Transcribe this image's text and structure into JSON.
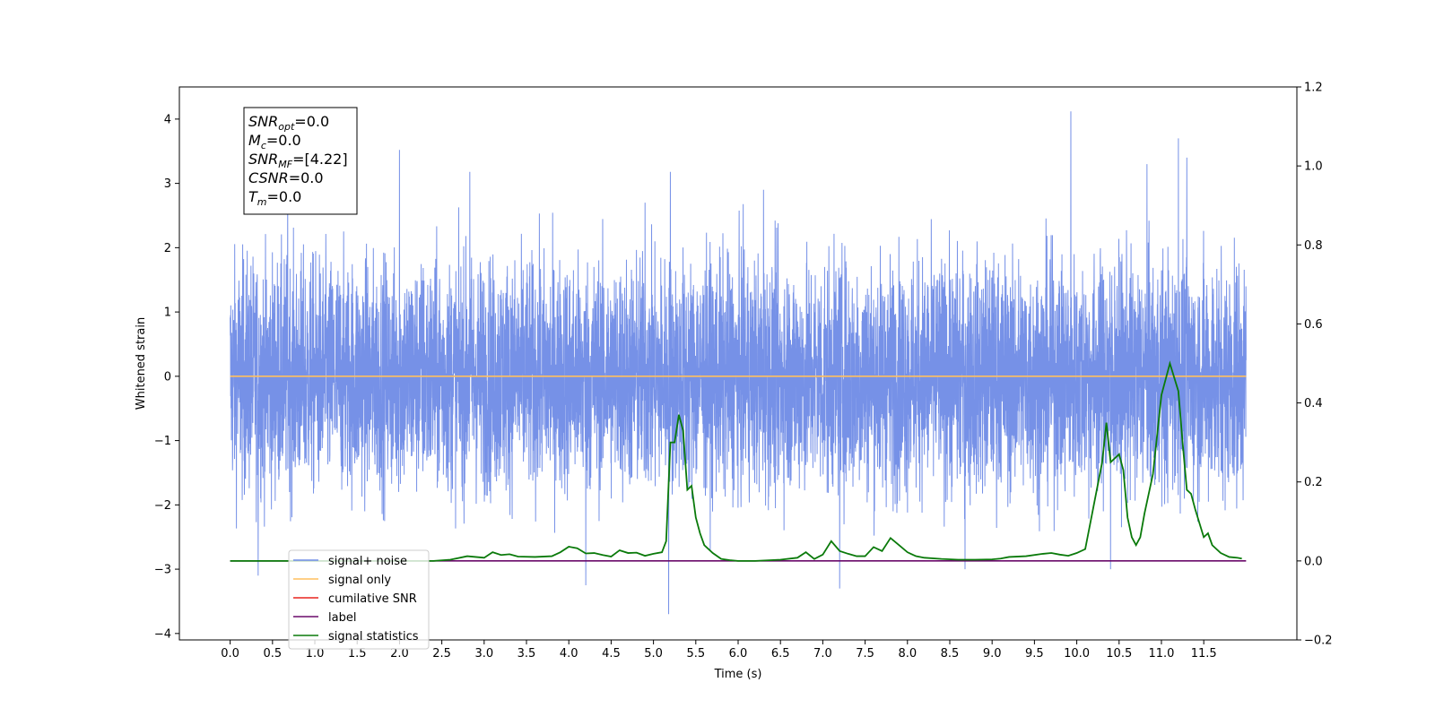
{
  "chart_data": {
    "type": "line",
    "xlabel": "Time (s)",
    "ylabel": "Whitened strain",
    "xlim": [
      -0.6,
      12.6
    ],
    "ylim_left": [
      -4.1,
      4.5
    ],
    "ylim_right": [
      -0.2,
      1.2
    ],
    "x_ticks": [
      0.0,
      0.5,
      1.0,
      1.5,
      2.0,
      2.5,
      3.0,
      3.5,
      4.0,
      4.5,
      5.0,
      5.5,
      6.0,
      6.5,
      7.0,
      7.5,
      8.0,
      8.5,
      9.0,
      9.5,
      10.0,
      10.5,
      11.0,
      11.5
    ],
    "x_tick_labels": [
      "0.0",
      "0.5",
      "1.0",
      "1.5",
      "2.0",
      "2.5",
      "3.0",
      "3.5",
      "4.0",
      "4.5",
      "5.0",
      "5.5",
      "6.0",
      "6.5",
      "7.0",
      "7.5",
      "8.0",
      "8.5",
      "9.0",
      "9.5",
      "10.0",
      "10.5",
      "11.0",
      "11.5"
    ],
    "y_left_ticks": [
      -4,
      -3,
      -2,
      -1,
      0,
      1,
      2,
      3,
      4
    ],
    "y_left_tick_labels": [
      "−4",
      "−3",
      "−2",
      "−1",
      "0",
      "1",
      "2",
      "3",
      "4"
    ],
    "y_right_ticks": [
      -0.2,
      0.0,
      0.2,
      0.4,
      0.6,
      0.8,
      1.0,
      1.2
    ],
    "y_right_tick_labels": [
      "−0.2",
      "0.0",
      "0.2",
      "0.4",
      "0.6",
      "0.8",
      "1.0",
      "1.2"
    ],
    "legend_position": "bottom-left",
    "grid": false,
    "series": [
      {
        "name": "signal+ noise",
        "axis": "left",
        "color": "#6f8be6",
        "x_range": [
          0.0,
          12.0
        ],
        "envelope_note": "dense whitened noise, values roughly within ±2.5 with spikes",
        "spikes": [
          {
            "x": 0.33,
            "y": -3.1
          },
          {
            "x": 0.68,
            "y": 3.0
          },
          {
            "x": 2.0,
            "y": 3.52
          },
          {
            "x": 2.83,
            "y": 3.18
          },
          {
            "x": 4.2,
            "y": -3.25
          },
          {
            "x": 4.9,
            "y": 2.7
          },
          {
            "x": 5.18,
            "y": -3.7
          },
          {
            "x": 5.2,
            "y": 3.18
          },
          {
            "x": 6.3,
            "y": 2.9
          },
          {
            "x": 7.2,
            "y": -3.3
          },
          {
            "x": 8.68,
            "y": -3.0
          },
          {
            "x": 9.93,
            "y": 4.12
          },
          {
            "x": 10.4,
            "y": -3.0
          },
          {
            "x": 10.83,
            "y": 3.3
          },
          {
            "x": 11.2,
            "y": 3.7
          },
          {
            "x": 11.3,
            "y": 3.4
          }
        ]
      },
      {
        "name": "signal only",
        "axis": "left",
        "color": "#ffbf5f",
        "x": [
          0.0,
          12.0
        ],
        "y": [
          0.0,
          0.0
        ]
      },
      {
        "name": "cumilative SNR",
        "axis": "left",
        "color": "#e8231f",
        "x": [],
        "y": []
      },
      {
        "name": "label",
        "axis": "right",
        "color": "#6a0a6a",
        "x": [
          0.0,
          12.0
        ],
        "y": [
          0.0,
          0.0
        ]
      },
      {
        "name": "signal statistics",
        "axis": "right",
        "color": "#0a7a0a",
        "x": [
          0.0,
          0.5,
          1.0,
          1.5,
          2.0,
          2.4,
          2.6,
          2.8,
          2.9,
          3.0,
          3.1,
          3.2,
          3.3,
          3.4,
          3.6,
          3.8,
          3.9,
          4.0,
          4.1,
          4.2,
          4.3,
          4.4,
          4.5,
          4.6,
          4.7,
          4.8,
          4.9,
          5.0,
          5.1,
          5.15,
          5.2,
          5.25,
          5.3,
          5.35,
          5.4,
          5.45,
          5.5,
          5.55,
          5.6,
          5.7,
          5.8,
          5.9,
          6.0,
          6.2,
          6.5,
          6.7,
          6.8,
          6.9,
          7.0,
          7.1,
          7.2,
          7.3,
          7.4,
          7.5,
          7.6,
          7.7,
          7.8,
          7.9,
          8.0,
          8.1,
          8.2,
          8.4,
          8.6,
          8.8,
          9.0,
          9.1,
          9.2,
          9.4,
          9.6,
          9.7,
          9.8,
          9.9,
          10.0,
          10.1,
          10.2,
          10.3,
          10.35,
          10.4,
          10.5,
          10.55,
          10.6,
          10.65,
          10.7,
          10.75,
          10.8,
          10.9,
          11.0,
          11.1,
          11.2,
          11.25,
          11.3,
          11.35,
          11.4,
          11.5,
          11.55,
          11.6,
          11.7,
          11.8,
          11.9,
          11.95
        ],
        "y": [
          0.0,
          0.0,
          0.0,
          0.0,
          0.0,
          0.0,
          0.003,
          0.012,
          0.01,
          0.008,
          0.022,
          0.015,
          0.017,
          0.011,
          0.01,
          0.012,
          0.022,
          0.036,
          0.032,
          0.019,
          0.02,
          0.015,
          0.011,
          0.027,
          0.02,
          0.021,
          0.013,
          0.018,
          0.022,
          0.05,
          0.3,
          0.3,
          0.37,
          0.33,
          0.18,
          0.19,
          0.11,
          0.07,
          0.04,
          0.02,
          0.005,
          0.002,
          0.0,
          0.0,
          0.003,
          0.008,
          0.022,
          0.005,
          0.016,
          0.05,
          0.025,
          0.018,
          0.012,
          0.012,
          0.035,
          0.025,
          0.058,
          0.04,
          0.022,
          0.012,
          0.008,
          0.005,
          0.003,
          0.003,
          0.004,
          0.006,
          0.01,
          0.012,
          0.018,
          0.02,
          0.016,
          0.013,
          0.02,
          0.03,
          0.14,
          0.25,
          0.35,
          0.25,
          0.27,
          0.23,
          0.11,
          0.06,
          0.04,
          0.06,
          0.12,
          0.22,
          0.42,
          0.5,
          0.43,
          0.3,
          0.18,
          0.17,
          0.13,
          0.06,
          0.07,
          0.04,
          0.02,
          0.01,
          0.008,
          0.006
        ]
      }
    ],
    "annotation": {
      "lines": [
        {
          "base": "SNR",
          "sub": "opt",
          "rest": "=0.0"
        },
        {
          "base": "M",
          "sub": "c",
          "rest": "=0.0"
        },
        {
          "base": "SNR",
          "sub": "MF",
          "rest": "=[4.22]"
        },
        {
          "base": "CSNR",
          "sub": "",
          "rest": "=0.0"
        },
        {
          "base": "T",
          "sub": "m",
          "rest": "=0.0"
        }
      ]
    },
    "legend": [
      {
        "label": "signal+ noise",
        "color": "#6f8be6"
      },
      {
        "label": "signal only",
        "color": "#ffbf5f"
      },
      {
        "label": "cumilative SNR",
        "color": "#e8231f"
      },
      {
        "label": "label",
        "color": "#6a0a6a"
      },
      {
        "label": "signal statistics",
        "color": "#0a7a0a"
      }
    ]
  }
}
